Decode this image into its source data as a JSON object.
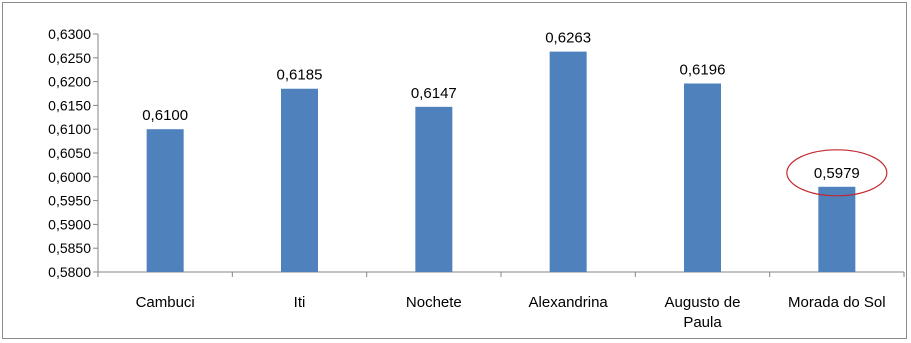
{
  "chart_data": {
    "type": "bar",
    "title": "",
    "xlabel": "",
    "ylabel": "",
    "ylim": [
      0.58,
      0.63
    ],
    "yticks": [
      "0,5800",
      "0,5850",
      "0,5900",
      "0,5950",
      "0,6000",
      "0,6050",
      "0,6100",
      "0,6150",
      "0,6200",
      "0,6250",
      "0,6300"
    ],
    "categories": [
      [
        "Cambuci"
      ],
      [
        "Iti"
      ],
      [
        "Nochete"
      ],
      [
        "Alexandrina"
      ],
      [
        "Augusto de",
        "Paula"
      ],
      [
        "Morada do Sol"
      ]
    ],
    "values": [
      0.61,
      0.6185,
      0.6147,
      0.6263,
      0.6196,
      0.5979
    ],
    "value_labels": [
      "0,6100",
      "0,6185",
      "0,6147",
      "0,6263",
      "0,6196",
      "0,5979"
    ],
    "bar_color": "#4f81bd",
    "highlight_index": 5,
    "highlight_color": "#c0282d",
    "grid": false,
    "legend": "none"
  }
}
